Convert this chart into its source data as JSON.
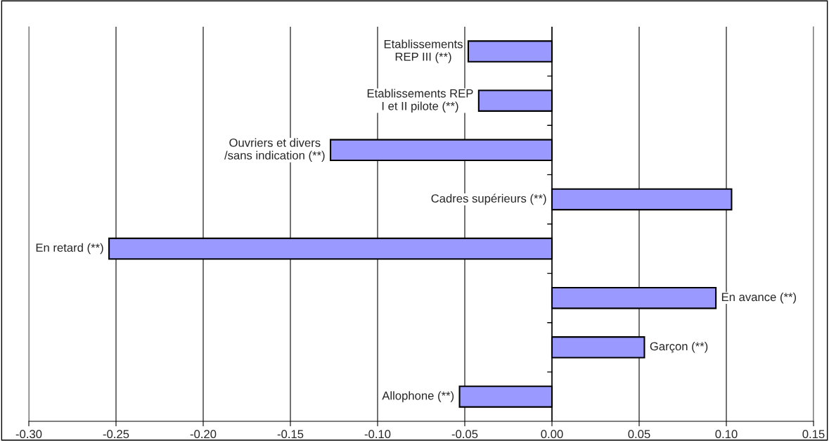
{
  "chart_data": {
    "type": "bar",
    "orientation": "horizontal",
    "categories": [
      "Etablissements REP III (**)",
      "Etablissements REP I et II pilote (**)",
      "Ouvriers et divers /sans indication (**)",
      "Cadres supérieurs (**)",
      "En retard (**)",
      "En avance (**)",
      "Garçon (**)",
      "Allophone (**)"
    ],
    "values": [
      -0.048,
      -0.042,
      -0.127,
      0.103,
      -0.254,
      0.094,
      0.053,
      -0.053
    ],
    "color": "#9999ff",
    "xlim": [
      -0.3,
      0.15
    ],
    "xticks": [
      {
        "value": -0.3,
        "label": "-0.30"
      },
      {
        "value": -0.25,
        "label": "-0.25"
      },
      {
        "value": -0.2,
        "label": "-0.20"
      },
      {
        "value": -0.15,
        "label": "-0.15"
      },
      {
        "value": -0.1,
        "label": "-0.10"
      },
      {
        "value": -0.05,
        "label": "-0.05"
      },
      {
        "value": 0,
        "label": "0.00"
      },
      {
        "value": 0.05,
        "label": "0.05"
      },
      {
        "value": 0.1,
        "label": "0.10"
      },
      {
        "value": 0.15,
        "label": "0.15"
      }
    ],
    "grid": "x"
  }
}
